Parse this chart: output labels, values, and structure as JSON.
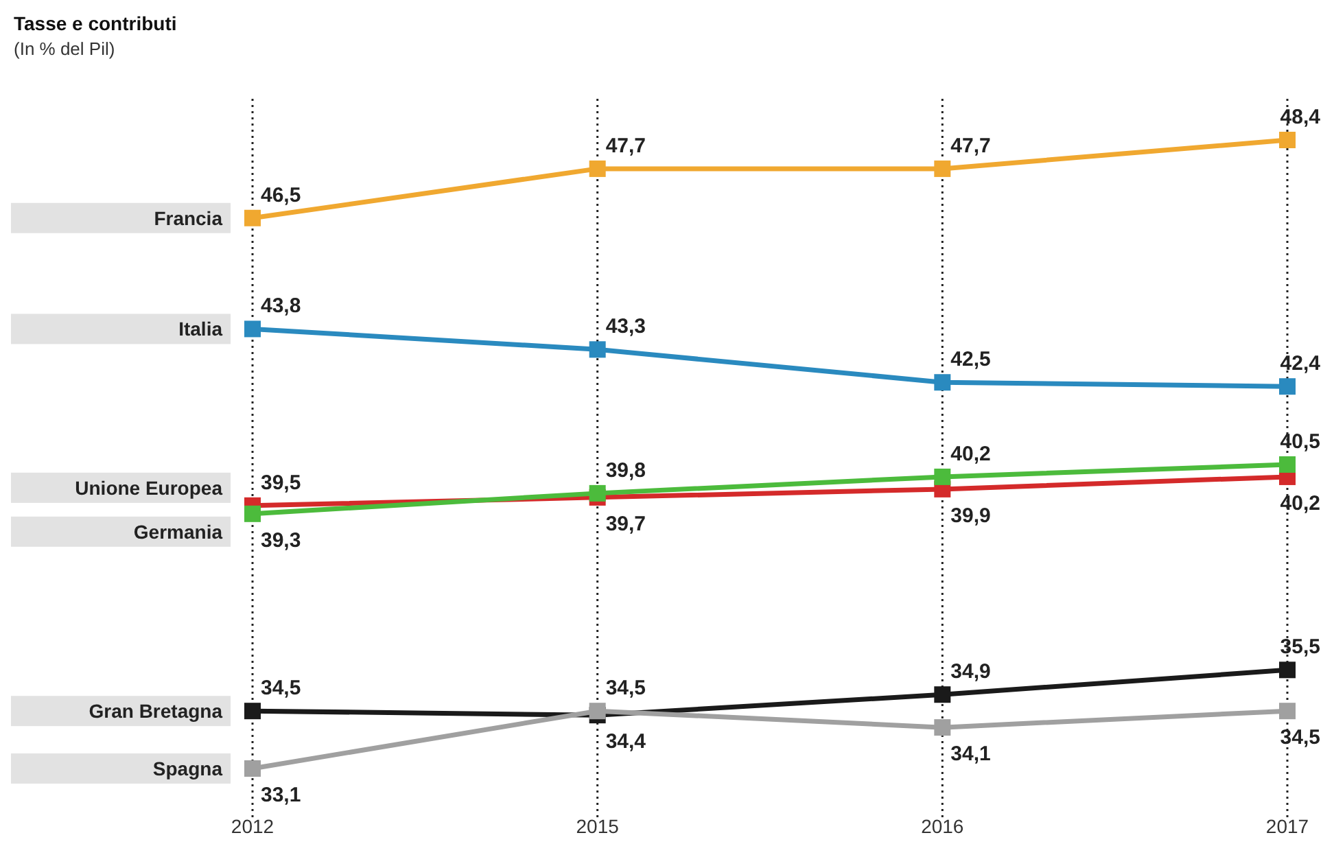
{
  "chart_data": {
    "type": "line",
    "title": "Tasse e contributi",
    "subtitle": "(In % del Pil)",
    "categories": [
      "2012",
      "2015",
      "2016",
      "2017"
    ],
    "grid": "x",
    "marker": "square",
    "legend": "left",
    "series": [
      {
        "name": "Francia",
        "color": "#f0a830",
        "values": [
          46.5,
          47.7,
          47.7,
          48.4
        ],
        "value_labels": [
          "46,5",
          "47,7",
          "47,7",
          "48,4"
        ]
      },
      {
        "name": "Italia",
        "color": "#2a8abf",
        "values": [
          43.8,
          43.3,
          42.5,
          42.4
        ],
        "value_labels": [
          "43,8",
          "43,3",
          "42,5",
          "42,4"
        ]
      },
      {
        "name": "Unione Europea",
        "color": "#d42a2a",
        "values": [
          39.5,
          39.7,
          39.9,
          40.2
        ],
        "value_labels": [
          "39,5",
          "39,7",
          "39,9",
          "40,2"
        ]
      },
      {
        "name": "Germania",
        "color": "#4cbb3c",
        "values": [
          39.3,
          39.8,
          40.2,
          40.5
        ],
        "value_labels": [
          "39,3",
          "39,8",
          "40,2",
          "40,5"
        ]
      },
      {
        "name": "Gran Bretagna",
        "color": "#1a1a1a",
        "values": [
          34.5,
          34.4,
          34.9,
          35.5
        ],
        "value_labels": [
          "34,5",
          "34,4",
          "34,9",
          "35,5"
        ]
      },
      {
        "name": "Spagna",
        "color": "#a0a0a0",
        "values": [
          33.1,
          34.5,
          34.1,
          34.5
        ],
        "value_labels": [
          "33,1",
          "34,5",
          "34,1",
          "34,5"
        ]
      }
    ]
  }
}
